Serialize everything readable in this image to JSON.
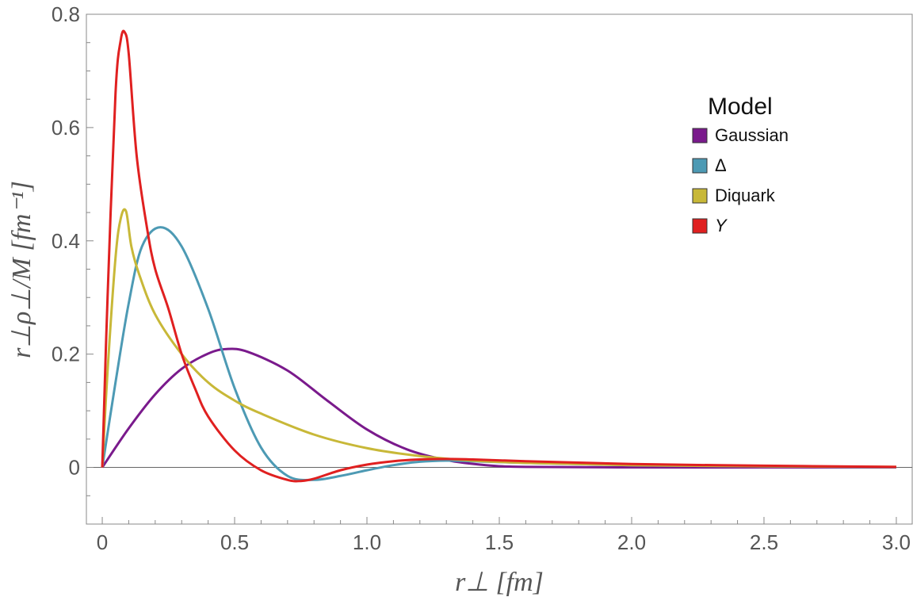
{
  "chart_data": {
    "type": "line",
    "title": "",
    "xlabel": "r⊥ [fm]",
    "ylabel": "r⊥ρ⊥/M [fm⁻¹]",
    "xlim": [
      -0.06,
      3.06
    ],
    "ylim": [
      -0.1,
      0.8
    ],
    "xticks": [
      0,
      0.5,
      1.0,
      1.5,
      2.0,
      2.5,
      3.0
    ],
    "xtick_labels": [
      "0",
      "0.5",
      "1.0",
      "1.5",
      "2.0",
      "2.5",
      "3.0"
    ],
    "yticks": [
      0,
      0.2,
      0.4,
      0.6,
      0.8
    ],
    "ytick_labels": [
      "0",
      "0.2",
      "0.4",
      "0.6",
      "0.8"
    ],
    "grid": false,
    "zero_line": true,
    "legend": {
      "title": "Model",
      "placement": "top-right",
      "entries": [
        "Gaussian",
        "Δ",
        "Diquark",
        "Y"
      ]
    },
    "series": [
      {
        "name": "Gaussian",
        "color": "#7a1a8c",
        "x": [
          0,
          0.1,
          0.2,
          0.3,
          0.4,
          0.47,
          0.55,
          0.7,
          0.85,
          1.0,
          1.15,
          1.3,
          1.45,
          1.6,
          2.0,
          2.5,
          3.0
        ],
        "y": [
          0,
          0.069,
          0.129,
          0.174,
          0.201,
          0.209,
          0.204,
          0.171,
          0.118,
          0.067,
          0.032,
          0.013,
          0.004,
          0.001,
          0,
          0,
          0
        ]
      },
      {
        "name": "Δ",
        "color": "#4d9ab4",
        "x": [
          0,
          0.05,
          0.1,
          0.15,
          0.22,
          0.3,
          0.4,
          0.5,
          0.6,
          0.7,
          0.8,
          0.9,
          1.0,
          1.1,
          1.2,
          1.3,
          1.4,
          1.6,
          2.0,
          2.5,
          3.0
        ],
        "y": [
          0,
          0.15,
          0.29,
          0.39,
          0.424,
          0.39,
          0.28,
          0.14,
          0.035,
          -0.015,
          -0.022,
          -0.015,
          -0.005,
          0.004,
          0.01,
          0.012,
          0.011,
          0.008,
          0.004,
          0.002,
          0.0005
        ]
      },
      {
        "name": "Diquark",
        "color": "#c8b838",
        "x": [
          0,
          0.02,
          0.05,
          0.07,
          0.09,
          0.11,
          0.14,
          0.2,
          0.3,
          0.4,
          0.5,
          0.6,
          0.8,
          1.0,
          1.2,
          1.4,
          1.6,
          2.0,
          2.5,
          3.0
        ],
        "y": [
          0,
          0.17,
          0.37,
          0.44,
          0.452,
          0.39,
          0.34,
          0.27,
          0.2,
          0.15,
          0.118,
          0.095,
          0.058,
          0.034,
          0.02,
          0.012,
          0.008,
          0.004,
          0.002,
          0.001
        ]
      },
      {
        "name": "Y",
        "color": "#e02020",
        "x": [
          0,
          0.02,
          0.05,
          0.07,
          0.085,
          0.1,
          0.13,
          0.17,
          0.2,
          0.25,
          0.3,
          0.35,
          0.4,
          0.5,
          0.6,
          0.7,
          0.75,
          0.8,
          0.9,
          1.0,
          1.1,
          1.2,
          1.3,
          1.4,
          1.6,
          2.0,
          2.5,
          3.0
        ],
        "y": [
          0,
          0.3,
          0.66,
          0.755,
          0.768,
          0.73,
          0.55,
          0.42,
          0.35,
          0.28,
          0.2,
          0.14,
          0.09,
          0.03,
          -0.005,
          -0.022,
          -0.024,
          -0.02,
          -0.005,
          0.005,
          0.011,
          0.014,
          0.015,
          0.014,
          0.011,
          0.006,
          0.003,
          0.001
        ]
      }
    ]
  }
}
